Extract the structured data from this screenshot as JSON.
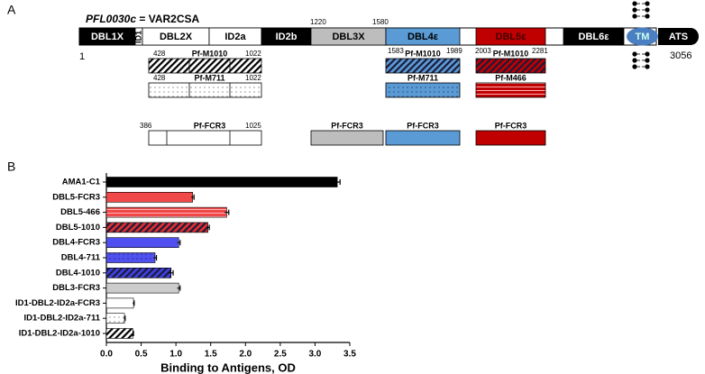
{
  "diagram": {
    "panel_label": "A",
    "gene": "PFL0030c",
    "gene_note": "= VAR2CSA",
    "start": 1,
    "end": 3056,
    "domains": [
      {
        "label": "DBL1X",
        "color": "#000000"
      },
      {
        "label": "ID1",
        "color": "#ffffff"
      },
      {
        "label": "DBL2X",
        "color": "#ffffff"
      },
      {
        "label": "ID2a",
        "color": "#ffffff"
      },
      {
        "label": "ID2b",
        "color": "#000000"
      },
      {
        "label": "DBL3X",
        "color": "#bdbdbd"
      },
      {
        "label": "DBL4ε",
        "color": "#5b9bd5"
      },
      {
        "label": "DBL5ε",
        "color": "#c00000"
      },
      {
        "label": "DBL6ε",
        "color": "#000000"
      },
      {
        "label": "TM",
        "color": "#4a7fc1"
      },
      {
        "label": "ATS",
        "color": "#000000"
      }
    ],
    "boundaries": [
      1220,
      1580,
      1583,
      1989,
      2003,
      2281
    ],
    "constructs": [
      {
        "label": "Pf-M1010",
        "start": 428,
        "end": 1022,
        "pattern": "hatch",
        "color": "#ffffff"
      },
      {
        "label": "Pf-M1010",
        "pattern": "hatch",
        "color": "#5b9bd5"
      },
      {
        "label": "Pf-M1010",
        "pattern": "hatch",
        "color": "#c00000"
      },
      {
        "label": "Pf-M711",
        "start": 428,
        "end": 1022,
        "pattern": "dots",
        "color": "#ffffff"
      },
      {
        "label": "Pf-M711",
        "pattern": "dots",
        "color": "#5b9bd5"
      },
      {
        "label": "Pf-M466",
        "pattern": "lines",
        "color": "#c00000"
      },
      {
        "label": "Pf-FCR3",
        "start": 386,
        "end": 1025,
        "pattern": "solid",
        "color": "#ffffff"
      },
      {
        "label": "Pf-FCR3",
        "pattern": "solid",
        "color": "#bdbdbd"
      },
      {
        "label": "Pf-FCR3",
        "pattern": "solid",
        "color": "#5b9bd5"
      },
      {
        "label": "Pf-FCR3",
        "pattern": "solid",
        "color": "#c00000"
      }
    ]
  },
  "chart_data": {
    "type": "bar",
    "orientation": "horizontal",
    "panel_label": "B",
    "categories": [
      "AMA1-C1",
      "DBL5-FCR3",
      "DBL5-466",
      "DBL5-1010",
      "DBL4-FCR3",
      "DBL4-711",
      "DBL4-1010",
      "DBL3-FCR3",
      "ID1-DBL2-ID2a-FCR3",
      "ID1-DBL2-ID2a-711",
      "ID1-DBL2-ID2a-1010"
    ],
    "values": [
      3.32,
      1.24,
      1.73,
      1.46,
      1.04,
      0.7,
      0.93,
      1.04,
      0.39,
      0.26,
      0.38
    ],
    "errors": [
      0.04,
      0.02,
      0.03,
      0.02,
      0.02,
      0.02,
      0.03,
      0.02,
      0.01,
      0.01,
      0.01
    ],
    "colors": [
      "#000000",
      "#f04848",
      "#f04848",
      "#e03030",
      "#5050f0",
      "#5050f0",
      "#4040e0",
      "#cccccc",
      "#ffffff",
      "#ffffff",
      "#ffffff"
    ],
    "patterns": [
      "solid",
      "solid",
      "lines",
      "hatch",
      "solid",
      "dots",
      "hatch",
      "solid",
      "solid",
      "dots",
      "hatch"
    ],
    "xlabel": "Binding to Antigens, OD",
    "xlim": [
      0,
      3.5
    ],
    "xticks": [
      {
        "value": 0,
        "label": "0.0"
      },
      {
        "value": 0.5,
        "label": "0.5"
      },
      {
        "value": 1,
        "label": "1.0"
      },
      {
        "value": 1.5,
        "label": "1.5"
      },
      {
        "value": 2,
        "label": "2.0"
      },
      {
        "value": 2.5,
        "label": "2.5"
      },
      {
        "value": 3,
        "label": "3.0"
      },
      {
        "value": 3.5,
        "label": "3.5"
      }
    ]
  }
}
